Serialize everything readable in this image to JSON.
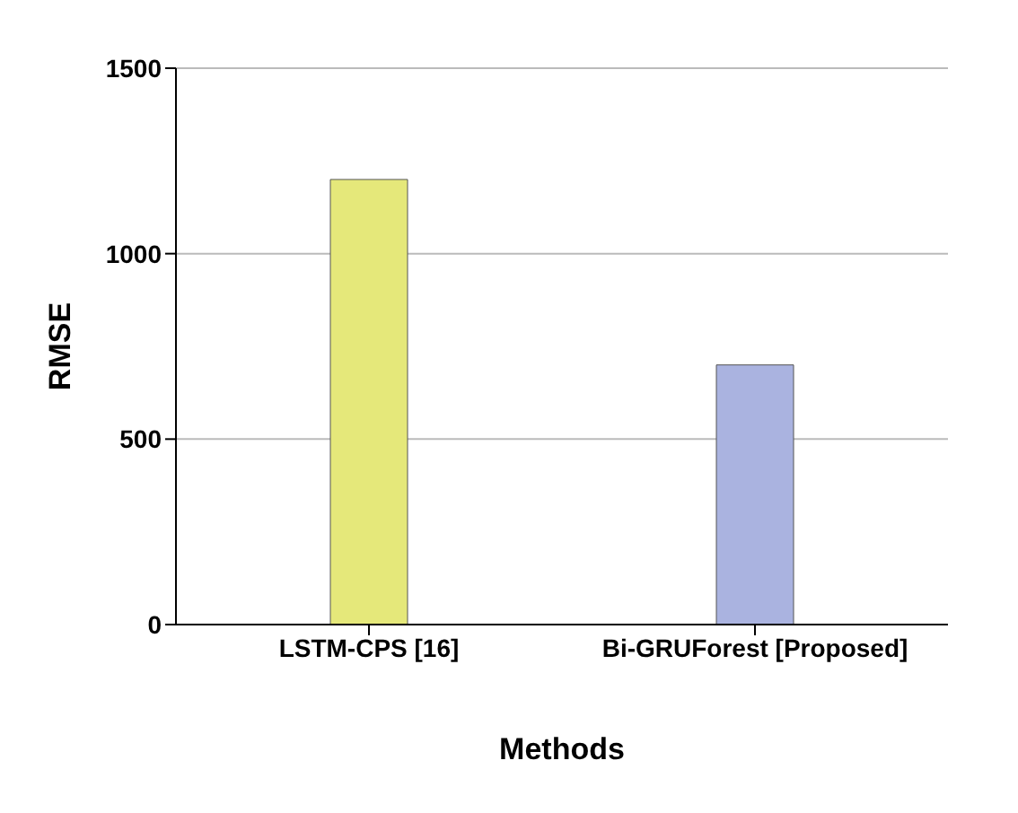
{
  "chart_data": {
    "type": "bar",
    "xlabel": "Methods",
    "ylabel": "RMSE",
    "categories": [
      "LSTM-CPS [16]",
      "Bi-GRUForest [Proposed]"
    ],
    "values": [
      1200,
      700
    ],
    "colors": [
      "#e5e87a",
      "#aab3e0"
    ],
    "ylim": [
      0,
      1500
    ],
    "yticks": [
      0,
      500,
      1000,
      1500
    ],
    "grid": "y"
  }
}
